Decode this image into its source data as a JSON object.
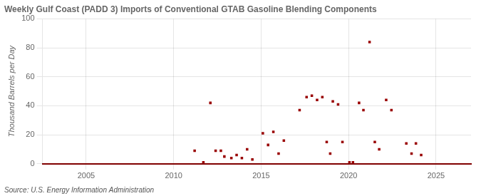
{
  "chart_data": {
    "type": "scatter",
    "title": "Weekly Gulf Coast (PADD 3) Imports of Conventional GTAB Gasoline Blending Components",
    "ylabel": "Thousand Barrels per Day",
    "annotations": [
      "Source: U.S. Energy Information Administration"
    ],
    "color": "#990000",
    "marker": "square",
    "grid": true,
    "xlim": [
      2002.5,
      2027
    ],
    "ylim": [
      0,
      100
    ],
    "xticks": [
      2005,
      2010,
      2015,
      2020,
      2025
    ],
    "yticks": [
      0,
      20,
      40,
      60,
      80,
      100
    ],
    "x": [
      2011.2,
      2011.7,
      2012.1,
      2012.4,
      2012.7,
      2012.9,
      2013.3,
      2013.6,
      2013.9,
      2014.2,
      2014.5,
      2015.1,
      2015.4,
      2015.7,
      2016.0,
      2016.3,
      2017.2,
      2017.6,
      2017.9,
      2018.2,
      2018.5,
      2018.75,
      2018.95,
      2019.1,
      2019.4,
      2019.65,
      2020.05,
      2020.25,
      2020.6,
      2020.85,
      2021.2,
      2021.5,
      2021.75,
      2022.15,
      2022.45,
      2023.3,
      2023.6,
      2023.85,
      2024.15
    ],
    "values": [
      9,
      1,
      42,
      9,
      9,
      5,
      4,
      6,
      4,
      10,
      3,
      21,
      13,
      22,
      7,
      16,
      37,
      46,
      47,
      44,
      46,
      15,
      7,
      43,
      41,
      15,
      1,
      1,
      42,
      37,
      84,
      15,
      10,
      44,
      37,
      14,
      7,
      14,
      6
    ]
  }
}
